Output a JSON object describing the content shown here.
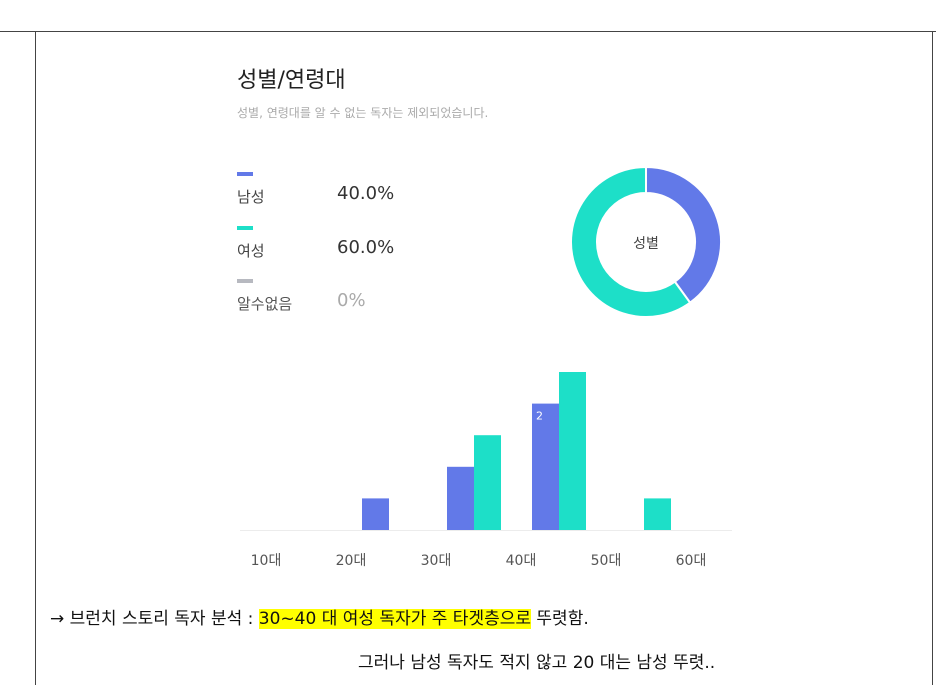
{
  "title": "성별/연령대",
  "subtitle": "성별, 연령대를 알 수 없는 독자는 제외되었습니다.",
  "legend": [
    {
      "label": "남성",
      "value": "40.0%",
      "color": "#6279e8"
    },
    {
      "label": "여성",
      "value": "60.0%",
      "color": "#1ddfc8"
    },
    {
      "label": "알수없음",
      "value": "0%",
      "color": "#b7b9c0"
    }
  ],
  "chart_data": [
    {
      "type": "pie",
      "variant": "donut",
      "center_label": "성별",
      "slices": [
        {
          "label": "남성",
          "value": 40.0,
          "color": "#6279e8"
        },
        {
          "label": "여성",
          "value": 60.0,
          "color": "#1ddfc8"
        },
        {
          "label": "알수없음",
          "value": 0,
          "color": "#b7b9c0"
        }
      ]
    },
    {
      "type": "bar",
      "categories": [
        "10대",
        "20대",
        "30대",
        "40대",
        "50대",
        "60대"
      ],
      "series": [
        {
          "name": "남성",
          "color": "#6279e8",
          "values": [
            0,
            0.5,
            1,
            2,
            0,
            0
          ]
        },
        {
          "name": "여성",
          "color": "#1ddfc8",
          "values": [
            0,
            0,
            1.5,
            2.5,
            0.5,
            0
          ]
        }
      ],
      "data_labels": [
        {
          "series": 0,
          "index": 3,
          "text": "2"
        }
      ],
      "ylim": [
        0,
        2.5
      ],
      "grid": false
    }
  ],
  "comments": {
    "line1_prefix": "→ 브런치 스토리 독자 분석 : ",
    "line1_highlight": "30~40 대 여성 독자가 주 타겟층으로",
    "line1_suffix": " 뚜렷함.",
    "line2": "그러나 남성 독자도 적지 않고 20 대는 남성 뚜렷.."
  }
}
